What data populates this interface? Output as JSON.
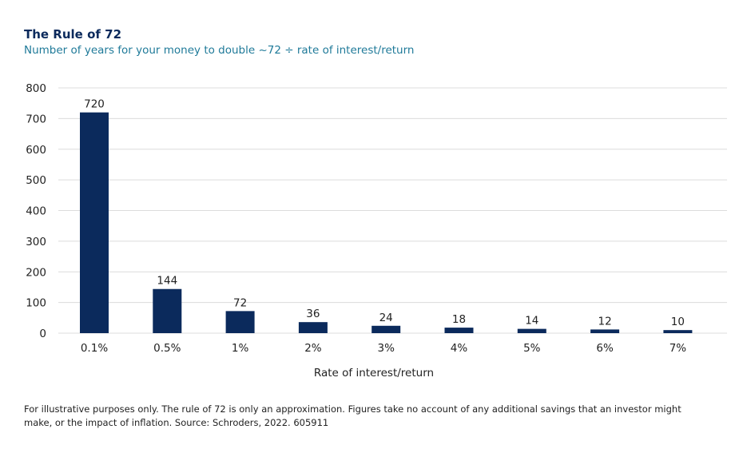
{
  "chart_data": {
    "type": "bar",
    "title": "The Rule of 72",
    "subtitle": "Number of years for your money to double ~72 ÷ rate of interest/return",
    "categories": [
      "0.1%",
      "0.5%",
      "1%",
      "2%",
      "3%",
      "4%",
      "5%",
      "6%",
      "7%"
    ],
    "values": [
      720,
      144,
      72,
      36,
      24,
      18,
      14,
      12,
      10
    ],
    "value_labels": [
      "720",
      "144",
      "72",
      "36",
      "24",
      "18",
      "14",
      "12",
      "10"
    ],
    "xlabel": "Rate of interest/return",
    "ylabel": "",
    "ylim": [
      0,
      800
    ],
    "yticks": [
      0,
      100,
      200,
      300,
      400,
      500,
      600,
      700,
      800
    ],
    "grid": true,
    "bar_color": "#0b2a5c",
    "grid_color": "#dcdcdc"
  },
  "footnote": "For illustrative purposes only. The rule of 72 is only an approximation. Figures take no account of any additional savings that an investor might make, or the impact of inflation. Source: Schroders, 2022. 605911"
}
